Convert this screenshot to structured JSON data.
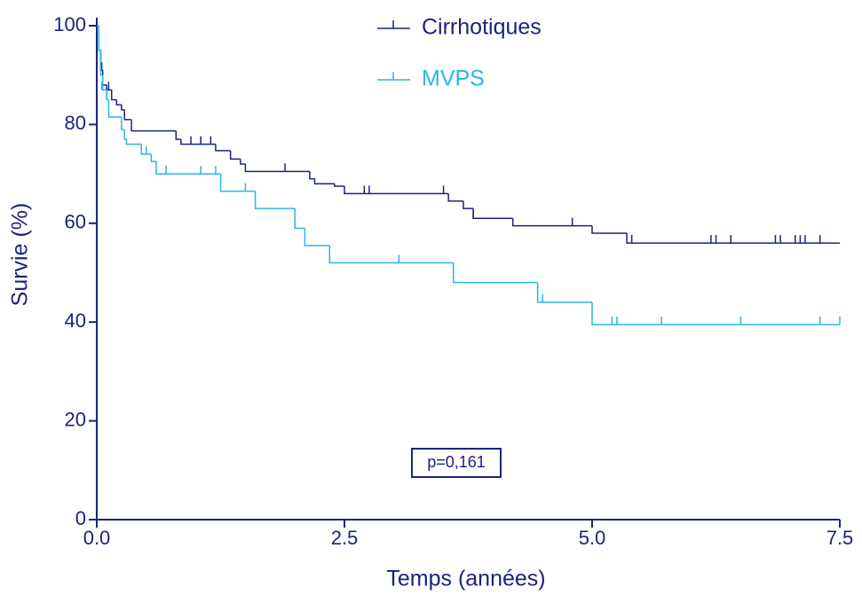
{
  "chart_data": {
    "type": "step",
    "xlabel": "Temps (années)",
    "ylabel": "Survie (%)",
    "annotation": "p=0,161",
    "xlim": [
      0,
      7.5
    ],
    "ylim": [
      0,
      100
    ],
    "xticks": [
      {
        "value": 0,
        "label": "0.0"
      },
      2.5,
      {
        "value": 5,
        "label": "5.0"
      },
      7.5
    ],
    "yticks": [
      0,
      20,
      40,
      60,
      80,
      100
    ],
    "axis_color": "#1a237e",
    "series": [
      {
        "name": "Cirrhotiques",
        "color": "#1a237e",
        "x": [
          0,
          0.02,
          0.04,
          0.06,
          0.1,
          0.15,
          0.2,
          0.25,
          0.28,
          0.35,
          0.8,
          0.85,
          1.2,
          1.35,
          1.45,
          1.5,
          2.15,
          2.2,
          2.4,
          2.5,
          3.55,
          3.7,
          3.8,
          4.2,
          5.0,
          5.35,
          7.5
        ],
        "values": [
          100,
          95,
          91,
          88,
          87,
          85,
          84,
          83,
          81,
          78.7,
          77,
          76,
          74.7,
          73,
          72,
          70.5,
          69,
          68,
          67.5,
          66,
          64.5,
          63,
          61,
          59.5,
          58,
          56,
          56
        ],
        "censored_x": [
          0.05,
          0.12,
          0.8,
          0.95,
          1.05,
          1.15,
          1.9,
          2.7,
          2.75,
          3.5,
          3.8,
          4.8,
          5.4,
          6.2,
          6.25,
          6.4,
          6.85,
          6.9,
          7.05,
          7.1,
          7.15,
          7.3
        ],
        "censored_y": [
          91,
          87,
          77,
          76,
          76,
          76,
          70.5,
          66,
          66,
          66,
          61,
          59.5,
          56,
          56,
          56,
          56,
          56,
          56,
          56,
          56,
          56,
          56
        ]
      },
      {
        "name": "MVPS",
        "color": "#29b6e8",
        "x": [
          0,
          0.02,
          0.04,
          0.06,
          0.1,
          0.12,
          0.25,
          0.28,
          0.3,
          0.45,
          0.55,
          0.6,
          1.25,
          1.6,
          2.0,
          2.1,
          2.35,
          3.6,
          4.45,
          5.0,
          7.5
        ],
        "values": [
          100,
          95,
          90,
          87,
          85,
          81.5,
          79,
          77,
          76,
          74,
          72.5,
          70,
          66.5,
          63,
          59,
          55.5,
          52,
          48,
          44,
          39.5,
          39.5
        ],
        "censored_x": [
          0.05,
          0.1,
          0.5,
          0.7,
          1.05,
          1.2,
          1.5,
          3.05,
          4.5,
          5.2,
          5.25,
          5.7,
          6.5,
          7.3,
          7.5
        ],
        "censored_y": [
          87,
          85,
          74,
          70,
          70,
          70,
          66.5,
          52,
          44,
          39.5,
          39.5,
          39.5,
          39.5,
          39.5,
          39.5
        ]
      }
    ]
  }
}
